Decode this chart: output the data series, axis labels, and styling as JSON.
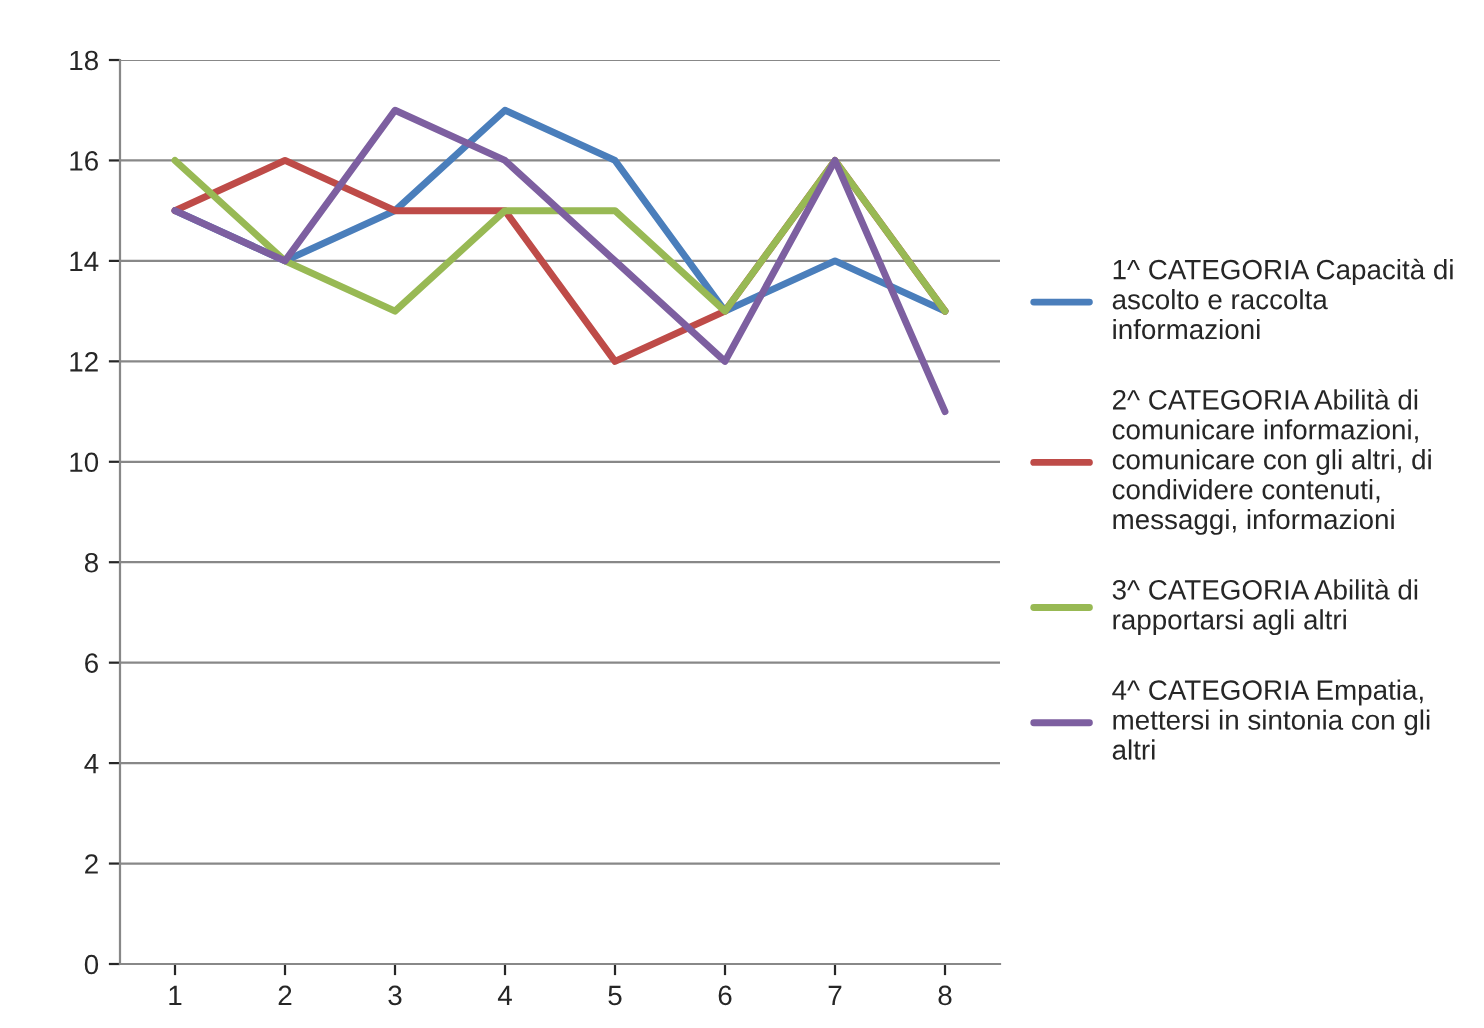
{
  "chart_data": {
    "type": "line",
    "categories": [
      "1",
      "2",
      "3",
      "4",
      "5",
      "6",
      "7",
      "8"
    ],
    "series": [
      {
        "name": "1^ CATEGORIA Capacità di\nascolto e raccolta\ninformazioni",
        "color": "#4a7ebb",
        "values": [
          15,
          14,
          15,
          17,
          16,
          13,
          14,
          13
        ]
      },
      {
        "name": "2^ CATEGORIA Abilità di\ncomunicare informazioni,\ncomunicare con gli altri, di\ncondividere contenuti,\nmessaggi, informazioni",
        "color": "#be4b48",
        "values": [
          15,
          16,
          15,
          15,
          12,
          13,
          16,
          13
        ]
      },
      {
        "name": "3^ CATEGORIA Abilità di\nrapportarsi agli altri",
        "color": "#98b954",
        "values": [
          16,
          14,
          13,
          15,
          15,
          13,
          16,
          13
        ]
      },
      {
        "name": "4^ CATEGORIA Empatia,\nmettersi in sintonia con gli\naltri",
        "color": "#7d5fa0",
        "values": [
          15,
          14,
          17,
          16,
          14,
          12,
          16,
          11
        ]
      }
    ],
    "ylim": [
      0,
      18
    ],
    "yticks": [
      0,
      2,
      4,
      6,
      8,
      10,
      12,
      14,
      16,
      18
    ],
    "grid": "y",
    "legend": "right",
    "marker": "none",
    "line_style": "solid"
  }
}
